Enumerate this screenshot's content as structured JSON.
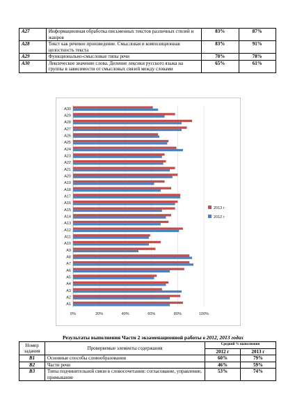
{
  "top_table": {
    "rows": [
      {
        "code": "A27",
        "text": "Информационная обработка письменных текстов различных стилей и жанров",
        "p2012": "83%",
        "p2013": "87%"
      },
      {
        "code": "A28",
        "text": "Текст как речевое произведение. Смысловая и композиционная целостность текста",
        "p2012": "83%",
        "p2013": "91%"
      },
      {
        "code": "A29",
        "text": "Функционально-смысловые типы речи",
        "p2012": "70%",
        "p2013": "78%"
      },
      {
        "code": "A30",
        "text": "Лексическое значение слова. Деление лексики русского языка на группы в зависимости от смысловых связей между словами",
        "p2012": "65%",
        "p2013": "61%"
      }
    ]
  },
  "chart_data": {
    "type": "bar",
    "orientation": "horizontal",
    "categories": [
      "A1",
      "A2",
      "A3",
      "A4",
      "A5",
      "A6",
      "A7",
      "A8",
      "A9",
      "A10",
      "A11",
      "A12",
      "A13",
      "A14",
      "A15",
      "A16",
      "A17",
      "A18",
      "A19",
      "A20",
      "A21",
      "A22",
      "A23",
      "A24",
      "A25",
      "A26",
      "A27",
      "A28",
      "A29",
      "A30"
    ],
    "series": [
      {
        "name": "2013 г",
        "color": "#c0504d",
        "values": [
          84,
          82,
          68,
          73,
          64,
          85,
          89,
          89,
          63,
          67,
          59,
          84,
          73,
          75,
          78,
          80,
          82,
          75,
          70,
          80,
          78,
          71,
          70,
          79,
          73,
          65,
          87,
          91,
          78,
          61
        ]
      },
      {
        "name": "2012 г",
        "color": "#4f81bd",
        "values": [
          74,
          74,
          83,
          71,
          62,
          74,
          92,
          91,
          50,
          58,
          58,
          81,
          67,
          71,
          68,
          78,
          82,
          67,
          62,
          76,
          74,
          69,
          68,
          84,
          72,
          66,
          83,
          83,
          70,
          65
        ]
      }
    ],
    "x_ticks": [
      "0%",
      "20%",
      "40%",
      "60%",
      "80%",
      "100%"
    ],
    "xlim": [
      0,
      100
    ],
    "legend_position": "right"
  },
  "part2": {
    "title_main": "Результаты выполнения Части 2 экзаменационной работы ",
    "title_years": "в 2012, 2013 годах",
    "header": {
      "col_num": "Номер задания",
      "col_elements": "Проверяемые элементы содержания",
      "col_avg": "Средний % выполнения",
      "year_2012": "2012 г",
      "year_2013": "2013 г"
    },
    "rows": [
      {
        "code": "B1",
        "text": "Основные способы словообразования",
        "p2012": "60%",
        "p2013": "79%"
      },
      {
        "code": "B2",
        "text": "Части речи",
        "p2012": "46%",
        "p2013": "59%"
      },
      {
        "code": "B3",
        "text": "Типы подчинительной связи в словосочетании: согласование, управление, примыкание",
        "p2012": "53%",
        "p2013": "74%"
      }
    ]
  }
}
